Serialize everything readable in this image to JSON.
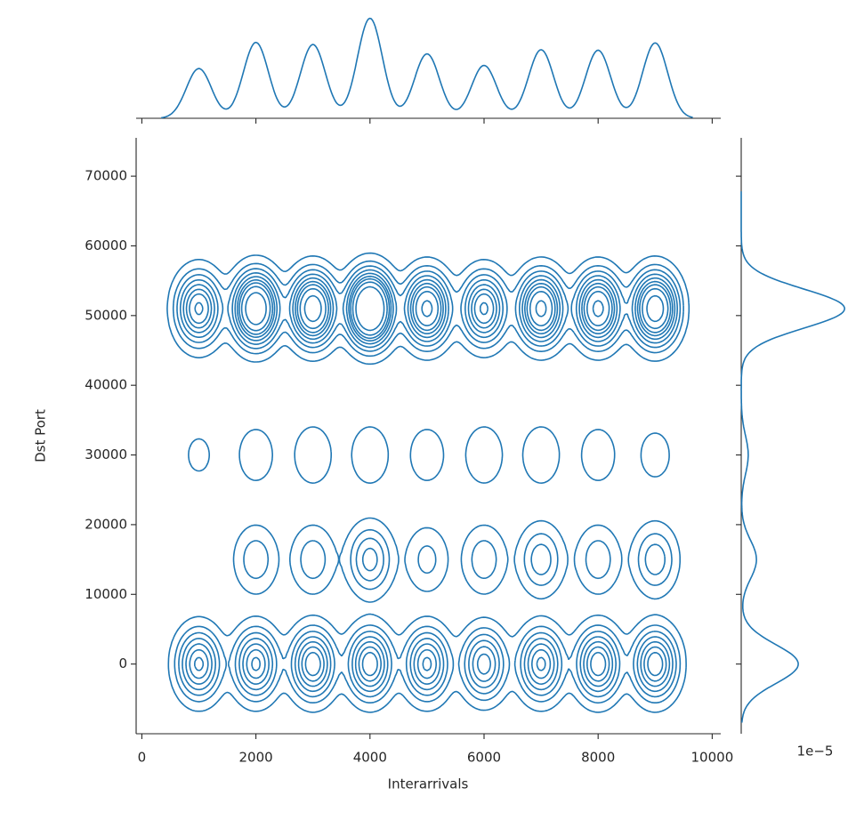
{
  "chart_data": {
    "type": "kde-joint",
    "xlabel": "Interarrivals",
    "ylabel": "Dst Port",
    "y_marginal_offset_text": "1e−5",
    "color": "#1f77b4",
    "x": [
      1000,
      2000,
      3000,
      4000,
      5000,
      6000,
      7000,
      8000,
      9000,
      1000,
      2000,
      3000,
      4000,
      5000,
      6000,
      7000,
      8000,
      9000,
      1000,
      2000,
      3000,
      4000,
      5000,
      6000,
      7000,
      8000,
      9000,
      1000,
      2000,
      3000,
      4000,
      5000,
      6000,
      7000,
      8000,
      9000
    ],
    "y": [
      0,
      0,
      0,
      0,
      0,
      0,
      0,
      0,
      0,
      15000,
      15000,
      15000,
      15000,
      15000,
      15000,
      15000,
      15000,
      15000,
      30000,
      30000,
      30000,
      30000,
      30000,
      30000,
      30000,
      30000,
      30000,
      51000,
      51000,
      51000,
      51000,
      51000,
      51000,
      51000,
      51000,
      51000
    ],
    "weights": [
      0.4,
      0.4,
      0.45,
      0.45,
      0.4,
      0.35,
      0.4,
      0.45,
      0.45,
      0.02,
      0.1,
      0.1,
      0.2,
      0.08,
      0.1,
      0.15,
      0.1,
      0.15,
      0.03,
      0.05,
      0.06,
      0.06,
      0.05,
      0.06,
      0.06,
      0.05,
      0.04,
      0.5,
      0.9,
      0.8,
      1.2,
      0.7,
      0.5,
      0.7,
      0.7,
      0.8
    ],
    "bandwidth": [
      220,
      2800
    ],
    "levels": 10,
    "xlim": [
      -100,
      10150
    ],
    "ylim": [
      -10000,
      75500
    ],
    "xticks": [
      0,
      2000,
      4000,
      6000,
      8000,
      10000
    ],
    "yticks": [
      0,
      10000,
      20000,
      30000,
      40000,
      50000,
      60000,
      70000
    ]
  }
}
